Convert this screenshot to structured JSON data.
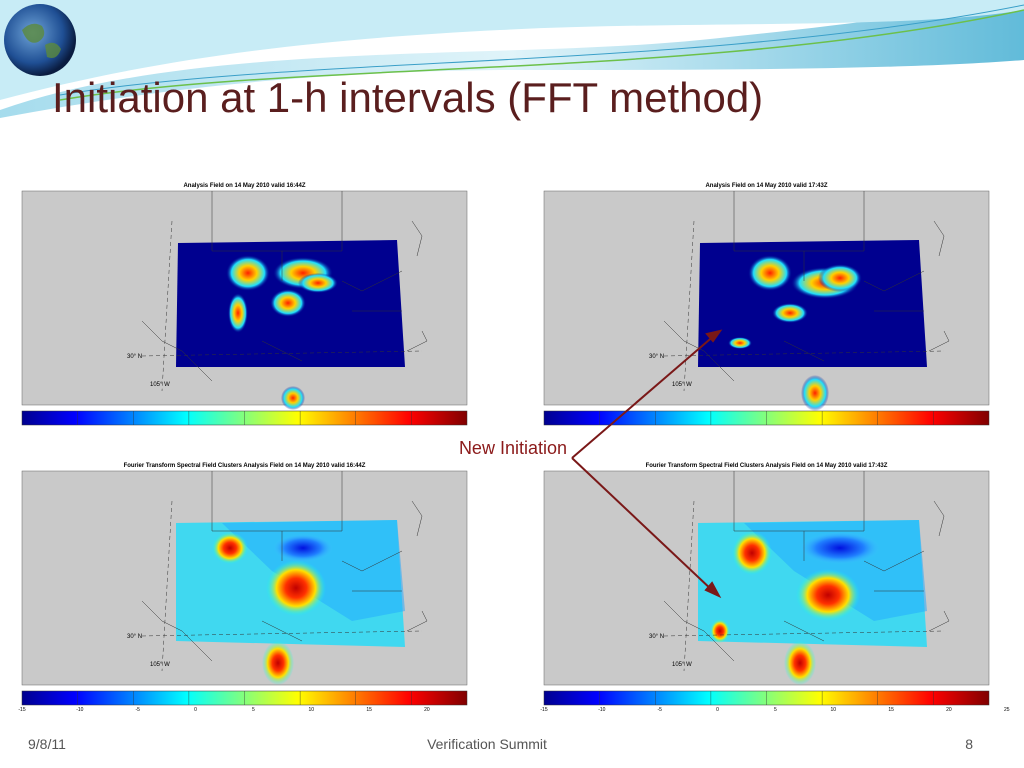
{
  "header": {
    "title": "Initiation at 1-h intervals (FFT method)"
  },
  "panels": [
    {
      "title": "Analysis Field on 14 May 2010 valid 16:44Z",
      "lat_label": "30° N",
      "lon_label": "105° W"
    },
    {
      "title": "Analysis Field on 14 May 2010 valid 17:43Z",
      "lat_label": "30° N",
      "lon_label": "105° W"
    },
    {
      "title": "Fourier Transform Spectral Field Clusters Analysis Field on 14 May 2010 valid 16:44Z",
      "lat_label": "30° N",
      "lon_label": "105° W",
      "colorbar_ticks": [
        -15,
        -10,
        -5,
        0,
        5,
        10,
        15,
        20
      ]
    },
    {
      "title": "Fourier Transform Spectral Field Clusters Analysis Field on 14 May 2010 valid 17:43Z",
      "lat_label": "30° N",
      "lon_label": "105° W",
      "colorbar_ticks": [
        -15,
        -10,
        -5,
        0,
        5,
        10,
        15,
        20,
        25
      ]
    }
  ],
  "annotation": "New Initiation",
  "footer": {
    "date": "9/8/11",
    "center": "Verification Summit",
    "page": "8"
  }
}
